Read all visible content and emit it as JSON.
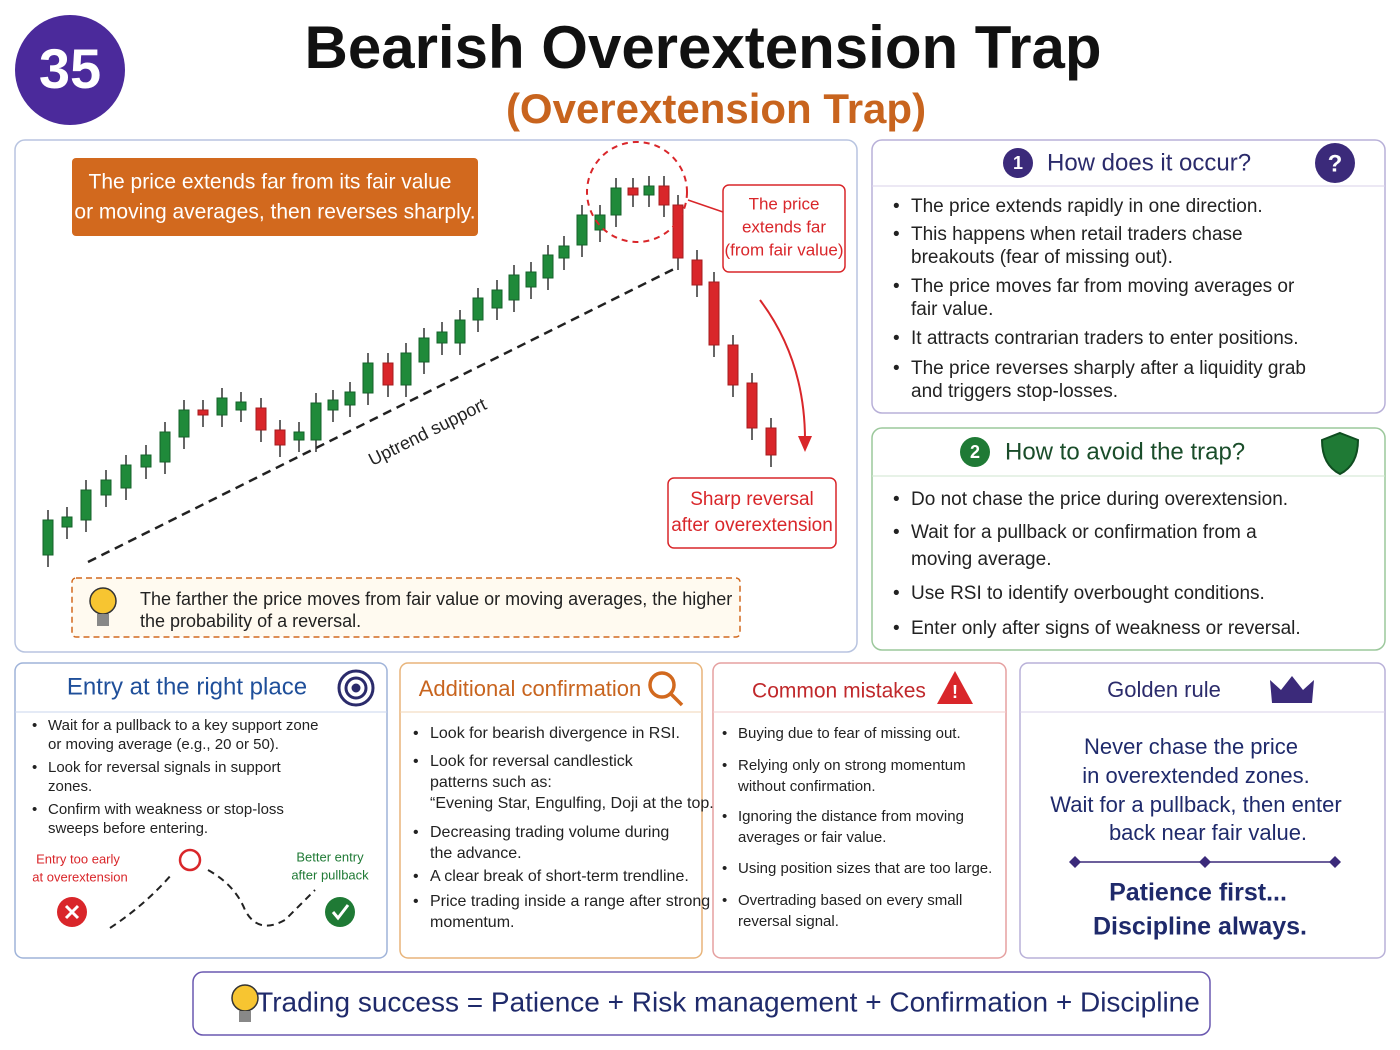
{
  "header": {
    "badge": "35",
    "title": "Bearish Overextension Trap",
    "subtitle": "(Overextension Trap)"
  },
  "illustration": {
    "headline": [
      "The price extends far from its fair value",
      "or moving averages, then reverses sharply."
    ],
    "callout": [
      "The price",
      "extends far",
      "(from fair value)"
    ],
    "support_label": "Uptrend support",
    "reversal_label": [
      "Sharp reversal",
      "after overextension"
    ],
    "note": [
      "The farther the price moves from fair value or moving averages, the higher",
      "the probability of a reversal."
    ]
  },
  "occur": {
    "number": "1",
    "title": "How does it occur?",
    "bullets": [
      [
        "The price extends rapidly in one direction."
      ],
      [
        "This happens when retail traders chase",
        "breakouts (fear of missing out)."
      ],
      [
        "The price moves far from moving averages or",
        "fair value."
      ],
      [
        "It attracts contrarian traders to enter positions."
      ],
      [
        "The price reverses sharply after a liquidity grab",
        "and triggers stop-losses."
      ]
    ]
  },
  "avoid": {
    "number": "2",
    "title": "How to avoid the trap?",
    "bullets": [
      [
        "Do not chase the price during overextension."
      ],
      [
        "Wait for a pullback or confirmation from a",
        "moving average."
      ],
      [
        "Use RSI to identify overbought conditions."
      ],
      [
        "Enter only after signs of weakness or reversal."
      ]
    ]
  },
  "entry": {
    "title": "Entry at the right place",
    "bullets": [
      [
        "Wait for a pullback to a key support zone",
        "or moving average (e.g., 20 or 50)."
      ],
      [
        "Look for reversal signals in support",
        "zones."
      ],
      [
        "Confirm with weakness or stop-loss",
        "sweeps before entering."
      ]
    ],
    "early_label": [
      "Entry too early",
      "at overextension"
    ],
    "better_label": [
      "Better entry",
      "after pullback"
    ]
  },
  "confirmation": {
    "title": "Additional confirmation",
    "bullets": [
      [
        "Look for bearish divergence in RSI."
      ],
      [
        "Look for reversal candlestick",
        "patterns such as:",
        "“Evening Star, Engulfing, Doji at the top."
      ],
      [
        "Decreasing trading volume during",
        "the advance."
      ],
      [
        "A clear break of short-term trendline."
      ],
      [
        "Price trading inside a range after strong",
        "momentum."
      ]
    ]
  },
  "mistakes": {
    "title": "Common mistakes",
    "bullets": [
      [
        "Buying due to fear of missing out."
      ],
      [
        "Relying only on strong momentum",
        "without confirmation."
      ],
      [
        "Ignoring the distance from moving",
        "averages or fair value."
      ],
      [
        "Using position sizes that are too large."
      ],
      [
        "Overtrading based on every small",
        "reversal signal."
      ]
    ]
  },
  "golden": {
    "title": "Golden rule",
    "rule": [
      "Never chase the price",
      "in overextended zones.",
      "Wait for a pullback, then enter",
      "back near fair value."
    ],
    "motto": [
      "Patience first...",
      "Discipline always."
    ]
  },
  "footer": "Trading success = Patience + Risk management + Confirmation + Discipline"
}
